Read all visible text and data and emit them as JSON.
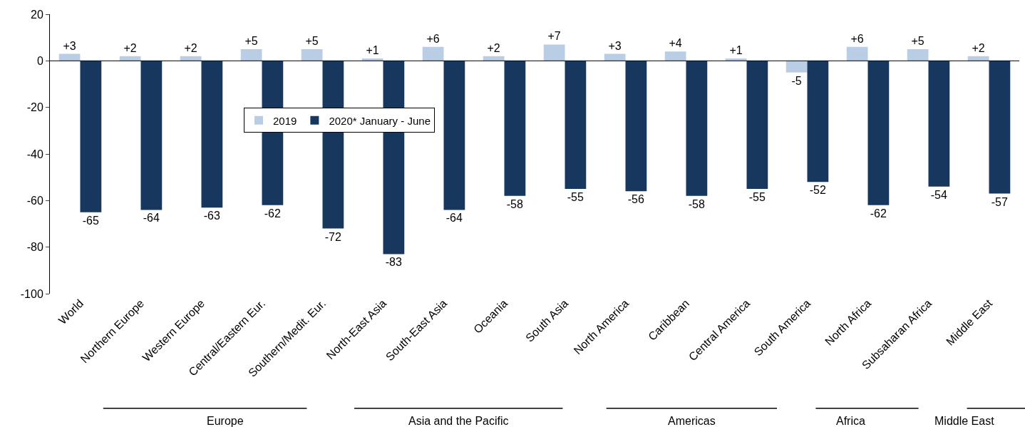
{
  "chart_data": {
    "type": "bar",
    "categories": [
      "World",
      "Northern Europe",
      "Western Europe",
      "Central/Eastern Eur.",
      "Southern/Medit. Eur.",
      "North-East Asia",
      "South-East Asia",
      "Oceania",
      "South Asia",
      "North America",
      "Caribbean",
      "Central America",
      "South America",
      "North Africa",
      "Subsaharan Africa",
      "Middle East"
    ],
    "series": [
      {
        "name": "2019",
        "color": "#b9cde5",
        "values": [
          3,
          2,
          2,
          5,
          5,
          1,
          6,
          2,
          7,
          3,
          4,
          1,
          -5,
          6,
          5,
          2
        ],
        "value_labels": [
          "+3",
          "+2",
          "+2",
          "+5",
          "+5",
          "+1",
          "+6",
          "+2",
          "+7",
          "+3",
          "+4",
          "+1",
          "-5",
          "+6",
          "+5",
          "+2"
        ]
      },
      {
        "name": "2020* January - June",
        "color": "#17375e",
        "values": [
          -65,
          -64,
          -63,
          -62,
          -72,
          -83,
          -64,
          -58,
          -55,
          -56,
          -58,
          -55,
          -52,
          -62,
          -54,
          -57
        ],
        "value_labels": [
          "-65",
          "-64",
          "-63",
          "-62",
          "-72",
          "-83",
          "-64",
          "-58",
          "-55",
          "-56",
          "-58",
          "-55",
          "-52",
          "-62",
          "-54",
          "-57"
        ]
      }
    ],
    "ylim": [
      -100,
      20
    ],
    "yticks": [
      -100,
      -80,
      -60,
      -40,
      -20,
      0,
      20
    ],
    "legend": "center",
    "ref_lines": [
      {
        "axis": "y",
        "value": 0,
        "color": "#000000"
      }
    ],
    "annotations": [
      "Europe",
      "Asia and the Pacific",
      "Americas",
      "Africa",
      "Middle East"
    ]
  }
}
